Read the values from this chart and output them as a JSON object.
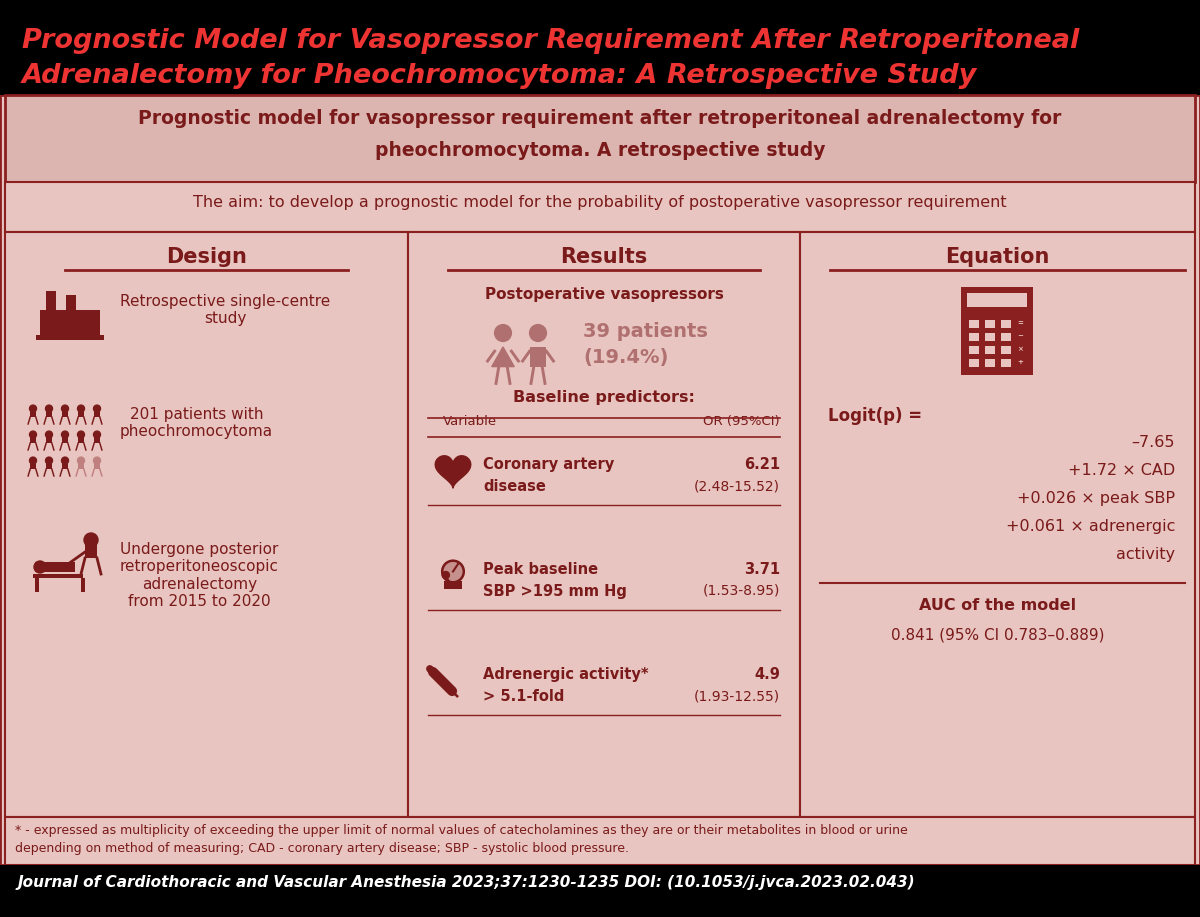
{
  "bg_black": "#000000",
  "bg_main": "#e8c5c0",
  "bg_subtitle": "#ddb5b0",
  "border_color": "#8b2020",
  "text_dark": "#7a1a1a",
  "title_color": "#ee3333",
  "white": "#ffffff",
  "gray_text": "#b07070",
  "main_title_line1": "Prognostic Model for Vasopressor Requirement After Retroperitoneal",
  "main_title_line2": "Adrenalectomy for Pheochromocytoma: A Retrospective Study",
  "subtitle_line1": "Prognostic model for vasopressor requirement after retroperitoneal adrenalectomy for",
  "subtitle_line2": "pheochromocytoma. A retrospective study",
  "aim_text": "The aim: to develop a prognostic model for the probability of postoperative vasopressor requirement",
  "design_title": "Design",
  "design_item1": "Retrospective single-centre\nstudy",
  "design_item2": "201 patients with\npheochromocytoma",
  "design_item3": "Undergone posterior\nretroperitoneoscopic\nadrenalectomy\nfrom 2015 to 2020",
  "results_title": "Results",
  "postop_label": "Postoperative vasopressors",
  "postop_patients": "39 patients",
  "postop_pct": "(19.4%)",
  "baseline_label": "Baseline predictors:",
  "col_var": "Variable",
  "col_or": "OR (95%CI)",
  "row1_var1": "Coronary artery",
  "row1_var2": "disease",
  "row1_or1": "6.21",
  "row1_or2": "(2.48-15.52)",
  "row2_var1": "Peak baseline",
  "row2_var2": "SBP >195 mm Hg",
  "row2_or1": "3.71",
  "row2_or2": "(1.53-8.95)",
  "row3_var1": "Adrenergic activity*",
  "row3_var2": "> 5.1-fold",
  "row3_or1": "4.9",
  "row3_or2": "(1.93-12.55)",
  "equation_title": "Equation",
  "eq_line0": "Logit(p) =",
  "eq_line1": "–7.65",
  "eq_line2": "+1.72 × CAD",
  "eq_line3": "+0.026 × peak SBP",
  "eq_line4": "+0.061 × adrenergic",
  "eq_line5": "activity",
  "auc_label": "AUC of the model",
  "auc_value": "0.841 (95% CI 0.783–0.889)",
  "footnote_line1": "* - expressed as multiplicity of exceeding the upper limit of normal values of catecholamines as they are or their metabolites in blood or urine",
  "footnote_line2": "depending on method of measuring; CAD - coronary artery disease; SBP - systolic blood pressure.",
  "journal_line": "Journal of Cardiothoracic and Vascular Anesthesia 2023;37:1230-1235 DOI: (10.1053/j.jvca.2023.02.043)"
}
